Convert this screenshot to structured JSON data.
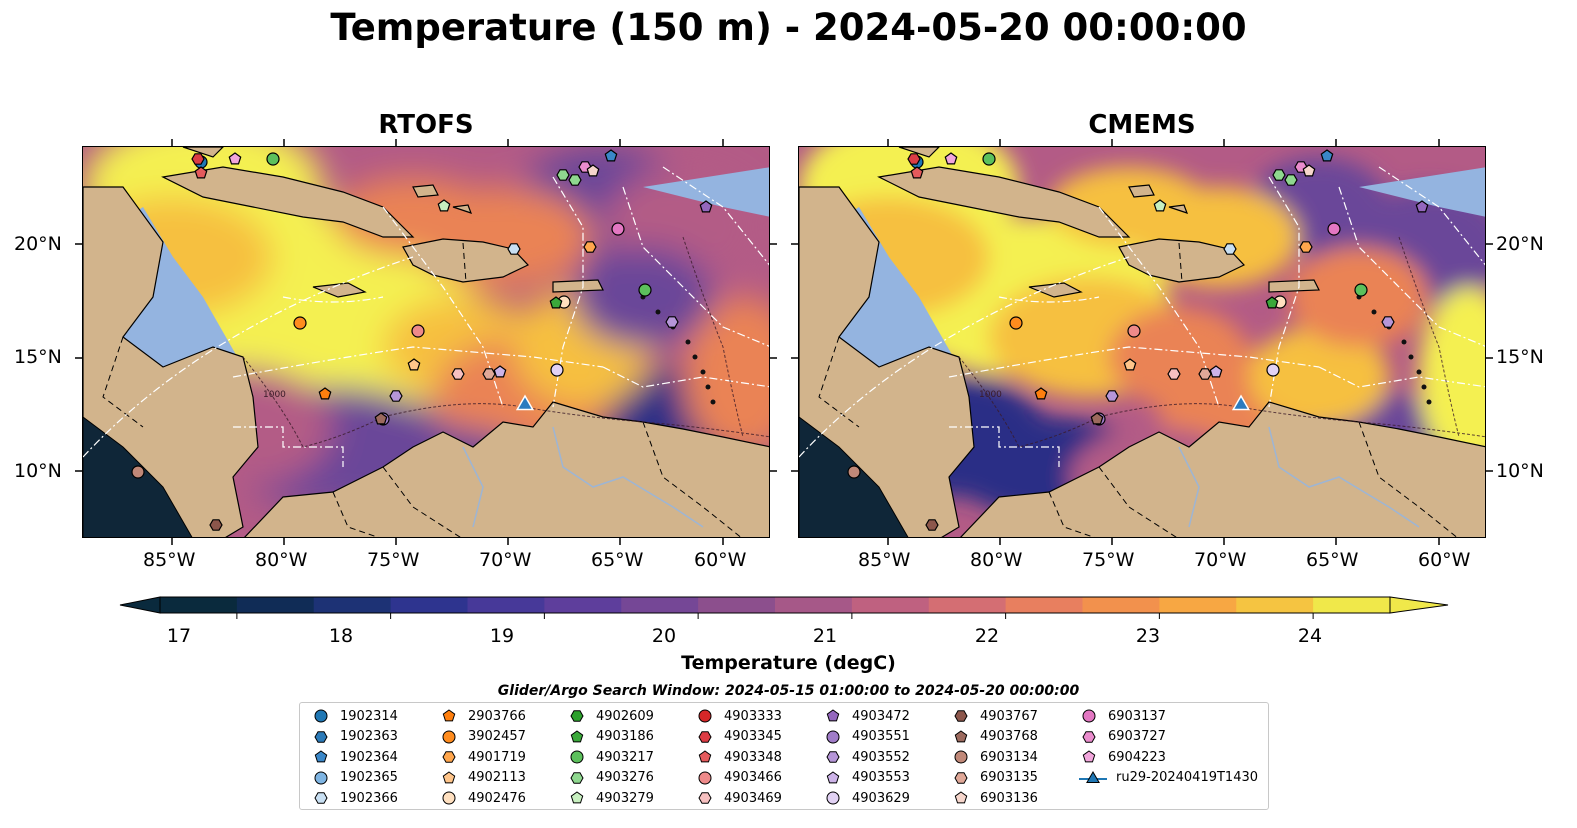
{
  "title": "Temperature (150 m) - 2024-05-20 00:00:00",
  "panels": [
    {
      "name": "RTOFS"
    },
    {
      "name": "CMEMS"
    }
  ],
  "x_ticks": [
    "85°W",
    "80°W",
    "75°W",
    "70°W",
    "65°W",
    "60°W"
  ],
  "y_ticks": [
    "20°N",
    "15°N",
    "10°N"
  ],
  "colorbar": {
    "label": "Temperature (degC)",
    "ticks": [
      "17",
      "18",
      "19",
      "20",
      "21",
      "22",
      "23",
      "24"
    ],
    "range": [
      16.5,
      24.5
    ],
    "extend": "both",
    "colors": [
      "#0a2a3d",
      "#102c56",
      "#1d3275",
      "#2e348f",
      "#473999",
      "#5e3e9c",
      "#754796",
      "#8c4f8d",
      "#a65888",
      "#bf6180",
      "#d46e73",
      "#e87f5f",
      "#f2914d",
      "#f7a743",
      "#f5c441",
      "#f0e84a"
    ]
  },
  "map": {
    "ocean_colors": [
      "#2c2f86",
      "#6b4699",
      "#b35b86",
      "#ea8354",
      "#f6c040",
      "#f4f051"
    ],
    "land_color": "#d2b48c",
    "shelf_color": "#94b4e0",
    "deep_pacific_color": "#0f2638",
    "boundary_line_color": "#ffffff",
    "depth_label": "1000"
  },
  "legend": {
    "title": "Glider/Argo Search Window: 2024-05-15 01:00:00 to 2024-05-20 00:00:00",
    "items": [
      {
        "label": "1902314",
        "marker": "circle",
        "color": "#1f77b4"
      },
      {
        "label": "1902363",
        "marker": "hexagon",
        "color": "#2b7ab8"
      },
      {
        "label": "1902364",
        "marker": "pentagon",
        "color": "#3a87c8"
      },
      {
        "label": "1902365",
        "marker": "circle",
        "color": "#7fb5e3"
      },
      {
        "label": "1902366",
        "marker": "hexagon",
        "color": "#c9e0f3"
      },
      {
        "label": "2903766",
        "marker": "pentagon",
        "color": "#ff7f0e"
      },
      {
        "label": "3902457",
        "marker": "circle",
        "color": "#ff8c1e"
      },
      {
        "label": "4901719",
        "marker": "hexagon",
        "color": "#ffa64d"
      },
      {
        "label": "4902113",
        "marker": "pentagon",
        "color": "#ffc58a"
      },
      {
        "label": "4902476",
        "marker": "circle",
        "color": "#ffe0c0"
      },
      {
        "label": "4902609",
        "marker": "hexagon",
        "color": "#2ca02c"
      },
      {
        "label": "4903186",
        "marker": "pentagon",
        "color": "#3aa83a"
      },
      {
        "label": "4903217",
        "marker": "circle",
        "color": "#5cc05c"
      },
      {
        "label": "4903276",
        "marker": "hexagon",
        "color": "#8fd88f"
      },
      {
        "label": "4903279",
        "marker": "pentagon",
        "color": "#c8f0c0"
      },
      {
        "label": "4903333",
        "marker": "circle",
        "color": "#d62728"
      },
      {
        "label": "4903345",
        "marker": "hexagon",
        "color": "#dc3c44"
      },
      {
        "label": "4903348",
        "marker": "pentagon",
        "color": "#e45a5c"
      },
      {
        "label": "4903466",
        "marker": "circle",
        "color": "#ee8a8a"
      },
      {
        "label": "4903469",
        "marker": "hexagon",
        "color": "#f6c0c0"
      },
      {
        "label": "4903472",
        "marker": "pentagon",
        "color": "#9467bd"
      },
      {
        "label": "4903551",
        "marker": "circle",
        "color": "#a07cc8"
      },
      {
        "label": "4903552",
        "marker": "hexagon",
        "color": "#b696d8"
      },
      {
        "label": "4903553",
        "marker": "pentagon",
        "color": "#cdb3e8"
      },
      {
        "label": "4903629",
        "marker": "circle",
        "color": "#e2d2f4"
      },
      {
        "label": "4903767",
        "marker": "hexagon",
        "color": "#8c564b"
      },
      {
        "label": "4903768",
        "marker": "pentagon",
        "color": "#9c6a5e"
      },
      {
        "label": "6903134",
        "marker": "circle",
        "color": "#c08878"
      },
      {
        "label": "6903135",
        "marker": "hexagon",
        "color": "#e0a898"
      },
      {
        "label": "6903136",
        "marker": "pentagon",
        "color": "#f6d6cc"
      },
      {
        "label": "6903137",
        "marker": "circle",
        "color": "#e377c2"
      },
      {
        "label": "6903727",
        "marker": "hexagon",
        "color": "#ea8ccd"
      },
      {
        "label": "6904223",
        "marker": "pentagon",
        "color": "#f2a6dc"
      },
      {
        "label": "ru29-20240419T1430",
        "marker": "triangle-line",
        "color": "#1f77b4"
      }
    ]
  }
}
